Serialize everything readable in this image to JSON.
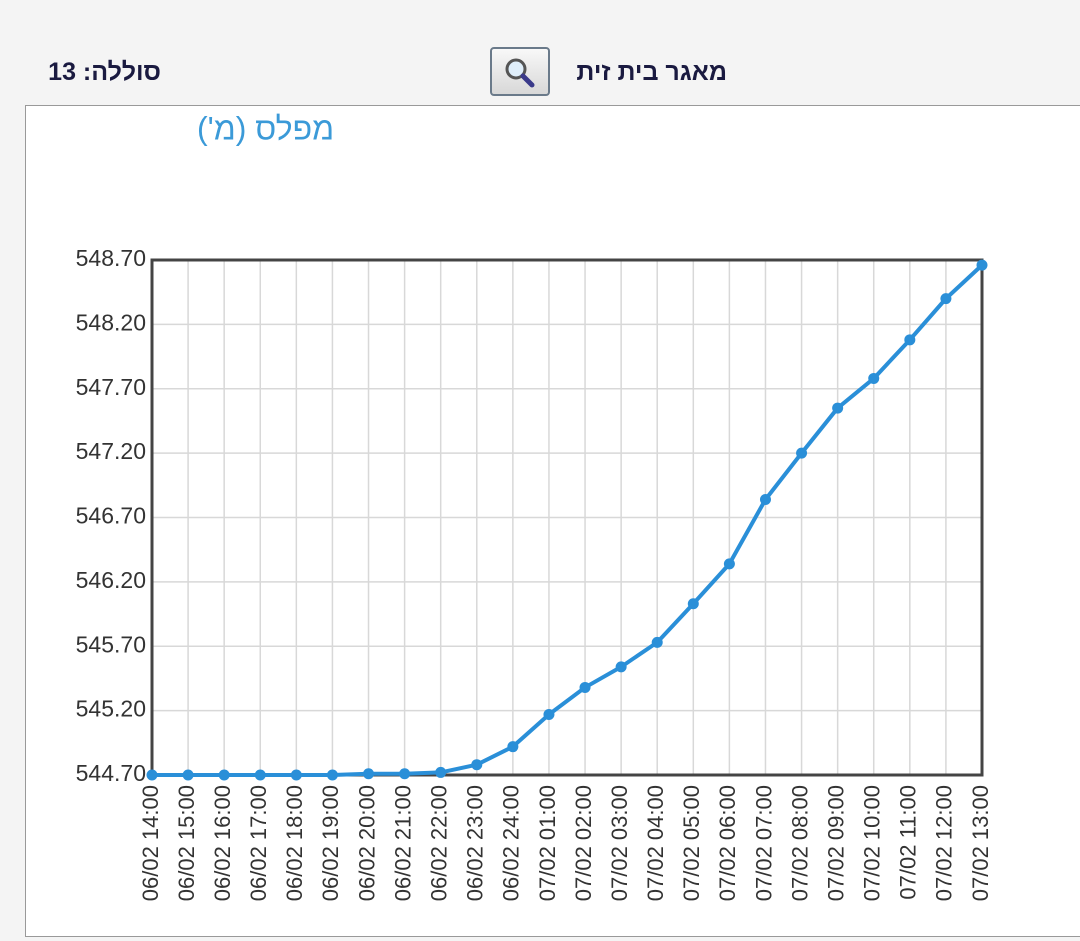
{
  "header": {
    "battery": "סוללה: 13",
    "reservoir": "מאגר בית זית"
  },
  "chart_data": {
    "type": "line",
    "title": "מפלס (מ')",
    "categories": [
      "06/02 14:00",
      "06/02 15:00",
      "06/02 16:00",
      "06/02 17:00",
      "06/02 18:00",
      "06/02 19:00",
      "06/02 20:00",
      "06/02 21:00",
      "06/02 22:00",
      "06/02 23:00",
      "06/02 24:00",
      "07/02 01:00",
      "07/02 02:00",
      "07/02 03:00",
      "07/02 04:00",
      "07/02 05:00",
      "07/02 06:00",
      "07/02 07:00",
      "07/02 08:00",
      "07/02 09:00",
      "07/02 10:00",
      "07/02 11:00",
      "07/02 12:00",
      "07/02 13:00"
    ],
    "values": [
      544.7,
      544.7,
      544.7,
      544.7,
      544.7,
      544.7,
      544.71,
      544.71,
      544.72,
      544.78,
      544.92,
      545.17,
      545.38,
      545.54,
      545.73,
      546.03,
      546.34,
      546.84,
      547.2,
      547.55,
      547.78,
      548.08,
      548.4,
      548.66
    ],
    "color": "#2a8fd8",
    "ylim": [
      544.7,
      548.7
    ],
    "yticks": [
      {
        "value": 544.7,
        "label": "544.70"
      },
      {
        "value": 545.2,
        "label": "545.20"
      },
      {
        "value": 545.7,
        "label": "545.70"
      },
      {
        "value": 546.2,
        "label": "546.20"
      },
      {
        "value": 546.7,
        "label": "546.70"
      },
      {
        "value": 547.2,
        "label": "547.20"
      },
      {
        "value": 547.7,
        "label": "547.70"
      },
      {
        "value": 548.2,
        "label": "548.20"
      },
      {
        "value": 548.7,
        "label": "548.70"
      }
    ],
    "grid": true
  }
}
